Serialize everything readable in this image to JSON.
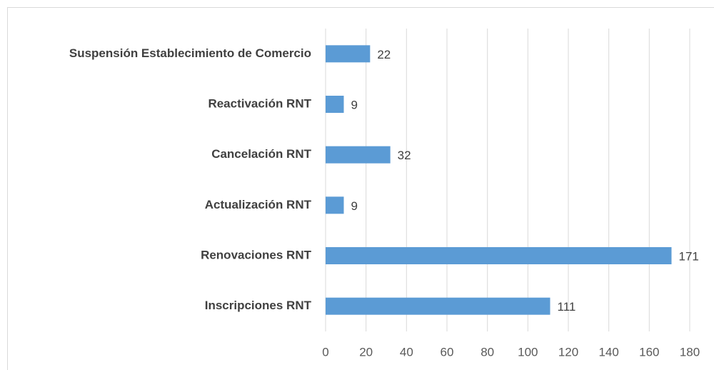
{
  "chart_data": {
    "type": "hbar",
    "categories": [
      "Suspensión Establecimiento de Comercio",
      "Reactivación RNT",
      "Cancelación RNT",
      "Actualización RNT",
      "Renovaciones RNT",
      "Inscripciones RNT"
    ],
    "values": [
      22,
      9,
      32,
      9,
      171,
      111
    ],
    "color": "#5b9bd5",
    "xlim": [
      0,
      180
    ],
    "xticks": [
      0,
      20,
      40,
      60,
      80,
      100,
      120,
      140,
      160,
      180
    ],
    "grid": true
  }
}
